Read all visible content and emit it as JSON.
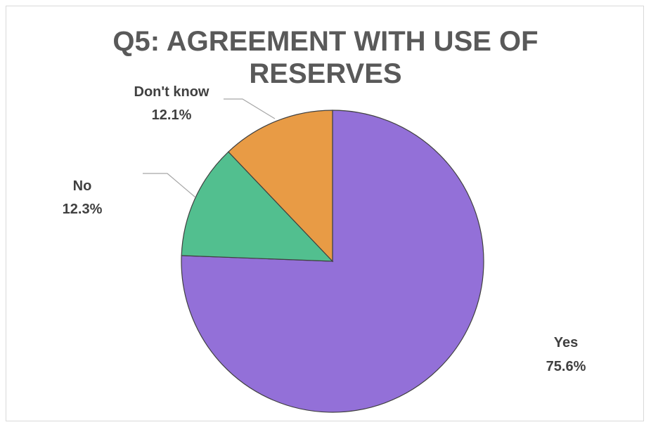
{
  "chart_data": {
    "type": "pie",
    "title_lines": [
      "Q5: AGREEMENT WITH USE OF",
      "RESERVES"
    ],
    "slices": [
      {
        "label": "Yes",
        "percent_label": "75.6%",
        "value": 75.6,
        "color": "#9370d8"
      },
      {
        "label": "No",
        "percent_label": "12.3%",
        "value": 12.3,
        "color": "#52bf8f"
      },
      {
        "label": "Don't know",
        "percent_label": "12.1%",
        "value": 12.1,
        "color": "#e89b45"
      }
    ],
    "start_angle": "12 o'clock",
    "direction": "clockwise",
    "legend": "none"
  }
}
